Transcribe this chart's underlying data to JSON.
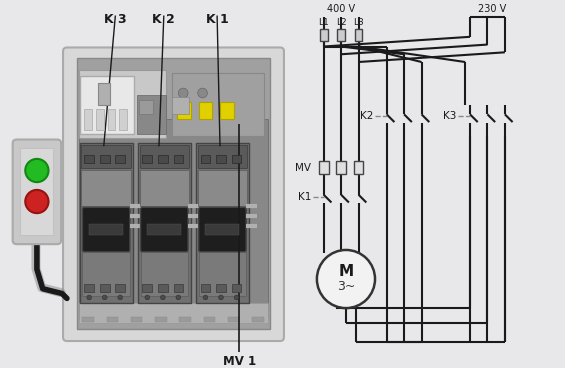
{
  "bg_color": "#e8e8ea",
  "line_color": "#1a1a1a",
  "dark_wire": "#222222",
  "light_wire": "#777777",
  "dashed_color": "#888888",
  "gray_bg": "#d4d4d4",
  "panel_bg": "#bebebe",
  "dark_panel": "#7a7a7a",
  "contactor_dark": "#5a5a5a",
  "contactor_mid": "#787878",
  "contactor_light": "#9a9a9a",
  "label_400V": "400 V",
  "label_230V": "230 V",
  "label_K2": "K2",
  "label_K3": "K3",
  "label_K1": "K1",
  "label_MV": "MV",
  "label_MV1": "MV 1",
  "label_K3_box": "K 3",
  "label_K2_box": "K 2",
  "label_K1_box": "K 1",
  "label_M": "M",
  "label_3tilde": "3~",
  "figsize": [
    5.65,
    3.68
  ],
  "dpi": 100,
  "L1_label": "L1",
  "L2_label": "L2",
  "L3_label": "L3"
}
